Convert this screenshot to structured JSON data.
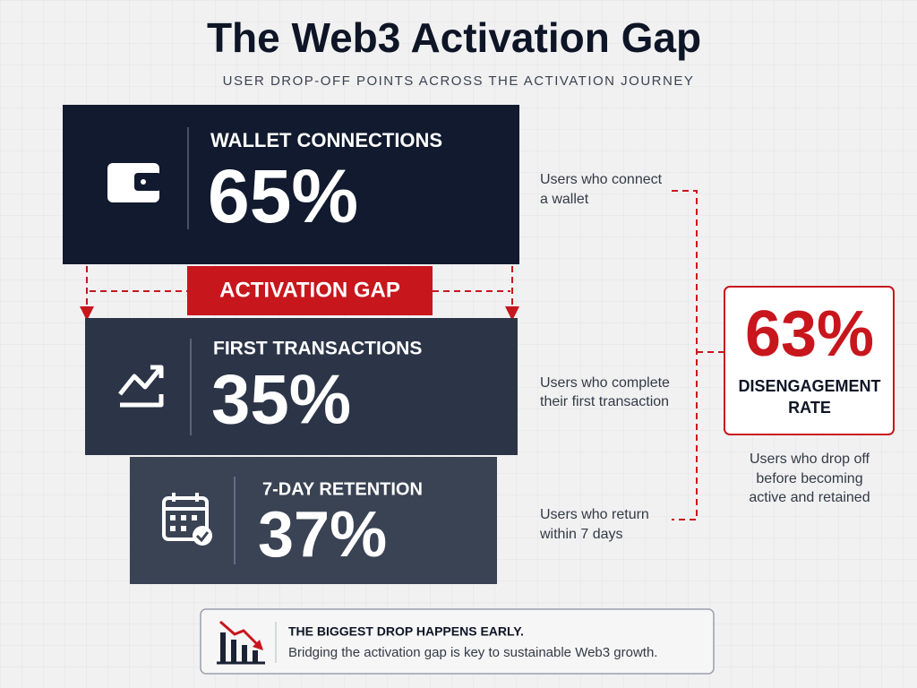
{
  "header": {
    "title": "The Web3 Activation Gap",
    "subtitle": "USER DROP-OFF POINTS ACROSS THE ACTIVATION JOURNEY"
  },
  "stages": [
    {
      "label": "WALLET CONNECTIONS",
      "value": "65%",
      "description": [
        "Users who connect",
        "a wallet"
      ]
    },
    {
      "label": "FIRST TRANSACTIONS",
      "value": "35%",
      "description": [
        "Users who complete",
        "their first transaction"
      ]
    },
    {
      "label": "7-DAY RETENTION",
      "value": "37%",
      "description": [
        "Users who return",
        "within 7 days"
      ]
    }
  ],
  "gap_label": "ACTIVATION GAP",
  "summary": {
    "value": "63%",
    "label": [
      "DISENGAGEMENT",
      "RATE"
    ],
    "description": [
      "Users who drop off",
      "before becoming",
      "active and retained"
    ]
  },
  "note": {
    "heading": "THE BIGGEST DROP HAPPENS EARLY.",
    "text": "Bridging the activation gap is key to sustainable Web3 growth."
  }
}
